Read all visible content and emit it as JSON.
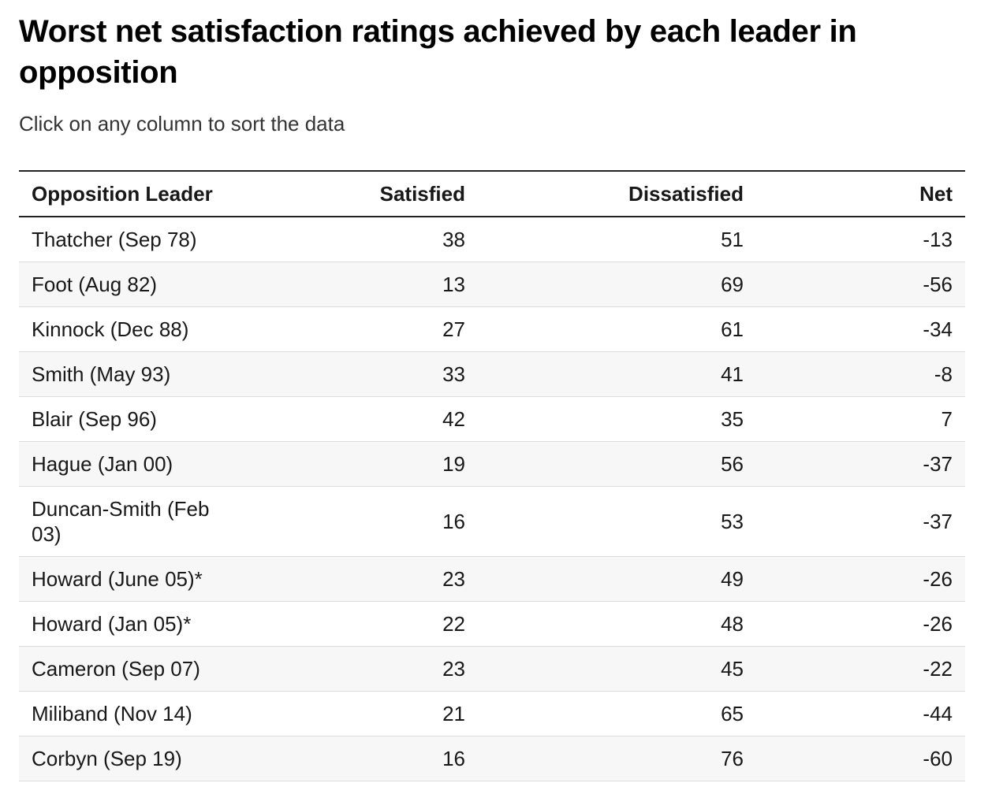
{
  "header": {
    "title": "Worst net satisfaction ratings achieved by each leader in opposition",
    "subtitle": "Click on any column to sort the data"
  },
  "table": {
    "columns": [
      "Opposition Leader",
      "Satisfied",
      "Dissatisfied",
      "Net"
    ],
    "rows": [
      [
        "Thatcher (Sep 78)",
        38,
        51,
        -13
      ],
      [
        "Foot (Aug 82)",
        13,
        69,
        -56
      ],
      [
        "Kinnock (Dec 88)",
        27,
        61,
        -34
      ],
      [
        "Smith (May 93)",
        33,
        41,
        -8
      ],
      [
        "Blair (Sep 96)",
        42,
        35,
        7
      ],
      [
        "Hague (Jan 00)",
        19,
        56,
        -37
      ],
      [
        "Duncan-Smith (Feb 03)",
        16,
        53,
        -37
      ],
      [
        "Howard (June 05)*",
        23,
        49,
        -26
      ],
      [
        "Howard (Jan 05)*",
        22,
        48,
        -26
      ],
      [
        "Cameron (Sep 07)",
        23,
        45,
        -22
      ],
      [
        "Miliband (Nov 14)",
        21,
        65,
        -44
      ],
      [
        "Corbyn (Sep 19)",
        16,
        76,
        -60
      ]
    ]
  }
}
